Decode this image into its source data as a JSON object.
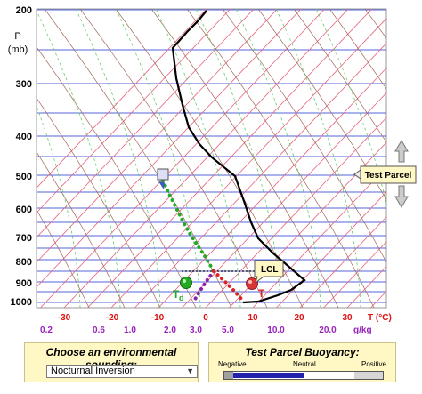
{
  "diagram": {
    "pressure_axis": {
      "title": "P",
      "unit": "(mb)",
      "levels": [
        "200",
        "300",
        "400",
        "500",
        "600",
        "700",
        "800",
        "900",
        "1000"
      ]
    },
    "temperature_axis": {
      "ticks": [
        "-30",
        "-20",
        "-10",
        "0",
        "10",
        "20",
        "30"
      ],
      "label": "T (°C)"
    },
    "mixing_ratio_axis": {
      "ticks": [
        "0.2",
        "0.6",
        "1.0",
        "2.0",
        "3.0",
        "5.0",
        "10.0",
        "20.0"
      ],
      "unit": "g/kg"
    },
    "markers": {
      "dewpoint": "T",
      "dewpoint_sub": "d",
      "temperature": "T",
      "lcl": "LCL"
    },
    "test_parcel_label": "Test Parcel",
    "colors": {
      "isotherm": "#e8607a",
      "isobar": "#5566dd",
      "environment": "#000000",
      "dry_adiabat": "#a06a5a",
      "moist_adiabat": "#66cc66",
      "mixing": "#88aa88",
      "parcel_green": "#22aa22",
      "parcel_red": "#dd2222",
      "parcel_purple": "#8822aa",
      "axis_red": "#dd1111",
      "axis_purple": "#9922bb"
    }
  },
  "sounding_panel": {
    "title": "Choose an environmental sounding:",
    "selected": "Nocturnal Inversion",
    "icon": "chevron-down-icon"
  },
  "buoyancy_panel": {
    "title": "Test Parcel Buoyancy:",
    "negative_label": "Negative",
    "neutral_label": "Neutral",
    "positive_label": "Positive",
    "value_fraction": 0.5
  }
}
